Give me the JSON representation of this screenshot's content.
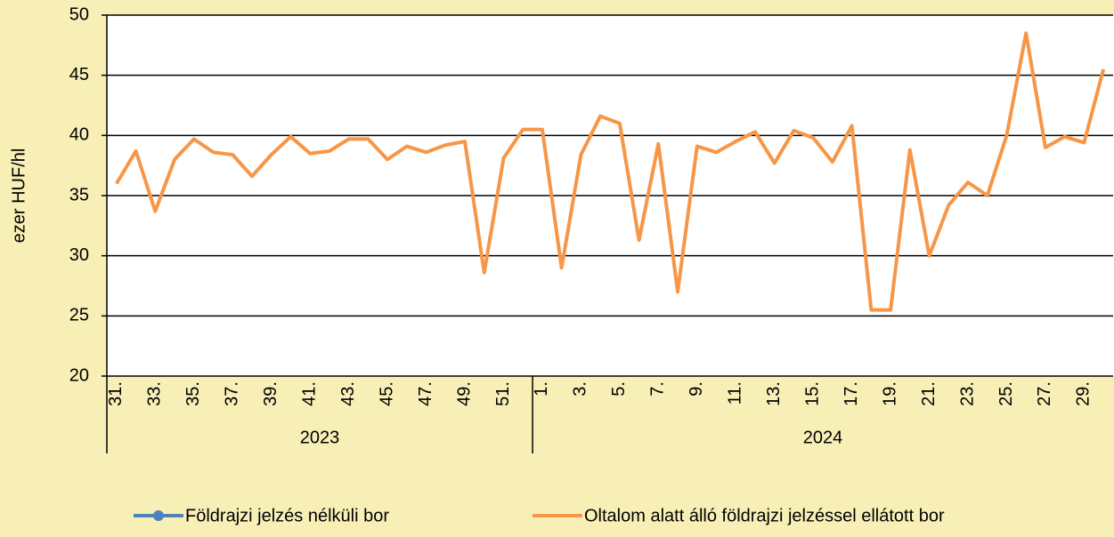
{
  "chart_data": {
    "type": "line",
    "y_label": "ezer HUF/hl",
    "categories": [
      "31.",
      null,
      "33.",
      null,
      "35.",
      null,
      "37.",
      null,
      "39.",
      null,
      "41.",
      null,
      "43.",
      null,
      "45.",
      null,
      "47.",
      null,
      "49.",
      null,
      "51.",
      null,
      "1.",
      null,
      "3.",
      null,
      "5.",
      null,
      "7.",
      null,
      "9.",
      null,
      "11.",
      null,
      "13.",
      null,
      "15.",
      null,
      "17.",
      null,
      "19.",
      null,
      "21.",
      null,
      "23.",
      null,
      "25.",
      null,
      "27.",
      null,
      "29.",
      null
    ],
    "groups": [
      {
        "name": "2023",
        "count": 22
      },
      {
        "name": "2024",
        "count": 30
      }
    ],
    "series": [
      {
        "name": "Földrajzi jelzés nélküli bor",
        "color": "#4f81bd",
        "values": [
          null,
          null,
          null,
          null,
          null,
          null,
          null,
          null,
          null,
          null,
          null,
          null,
          null,
          null,
          null,
          null,
          null,
          null,
          null,
          null,
          null,
          null,
          null,
          null,
          null,
          null,
          null,
          null,
          null,
          null,
          null,
          null,
          null,
          null,
          null,
          null,
          null,
          null,
          null,
          null,
          null,
          null,
          null,
          null,
          null,
          null,
          null,
          null,
          null,
          null,
          null,
          null
        ]
      },
      {
        "name": "Oltalom alatt álló földrajzi jelzéssel ellátott bor",
        "color": "#f79646",
        "values": [
          36,
          38.7,
          33.7,
          38,
          39.7,
          38.6,
          38.4,
          36.6,
          38.4,
          39.9,
          38.5,
          38.7,
          39.7,
          39.7,
          38,
          39.1,
          38.6,
          39.2,
          39.5,
          28.6,
          38.1,
          40.5,
          40.5,
          29,
          38.4,
          41.6,
          41,
          31.3,
          39.3,
          27,
          39.1,
          38.6,
          39.5,
          40.3,
          37.7,
          40.4,
          39.8,
          37.8,
          40.8,
          25.5,
          25.5,
          38.8,
          30,
          34.2,
          36.1,
          35,
          40,
          48.5,
          39,
          39.9,
          39.4,
          45.5
        ]
      }
    ],
    "ylim": [
      20,
      50
    ],
    "yticks": [
      20,
      25,
      30,
      35,
      40,
      45,
      50
    ],
    "grid": true
  }
}
